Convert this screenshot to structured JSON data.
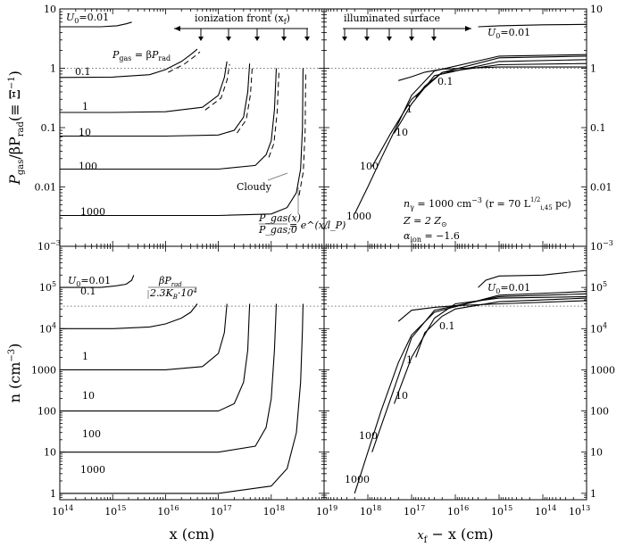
{
  "chart_data": [
    {
      "type": "line",
      "panel": "top-left",
      "xscale": "log",
      "yscale": "log",
      "xlim": [
        100000000000000.0,
        1e+19
      ],
      "ylim": [
        0.001,
        10
      ],
      "ylabel": "P_gas/βP_rad (≡ Ξ^−1)",
      "hline": 1,
      "series": [
        {
          "name": "U0=0.01",
          "x": [
            100000000000000.0,
            600000000000000.0,
            1200000000000000.0,
            1800000000000000.0,
            2300000000000000.0
          ],
          "y": [
            5.0,
            5.0,
            5.2,
            5.6,
            6.0
          ]
        },
        {
          "name": "0.1",
          "x": [
            100000000000000.0,
            1000000000000000.0,
            5000000000000000.0,
            1e+16,
            2e+16,
            3e+16,
            4e+16
          ],
          "y": [
            0.7,
            0.71,
            0.78,
            0.95,
            1.3,
            1.7,
            2.1
          ]
        },
        {
          "name": "1",
          "x": [
            100000000000000.0,
            1000000000000000.0,
            1e+16,
            5e+16,
            1e+17,
            1.3e+17,
            1.45e+17
          ],
          "y": [
            0.18,
            0.18,
            0.185,
            0.22,
            0.35,
            0.7,
            1.3
          ]
        },
        {
          "name": "10",
          "x": [
            100000000000000.0,
            1e+16,
            1e+17,
            2e+17,
            3e+17,
            3.6e+17,
            3.9e+17
          ],
          "y": [
            0.072,
            0.072,
            0.075,
            0.09,
            0.15,
            0.4,
            1.2
          ]
        },
        {
          "name": "100",
          "x": [
            100000000000000.0,
            1e+16,
            1e+17,
            5e+17,
            8e+17,
            1e+18,
            1.15e+18,
            1.25e+18
          ],
          "y": [
            0.02,
            0.02,
            0.02,
            0.023,
            0.035,
            0.06,
            0.2,
            1.0
          ]
        },
        {
          "name": "1000",
          "x": [
            100000000000000.0,
            1e+17,
            1e+18,
            2e+18,
            3e+18,
            3.6e+18,
            3.9e+18,
            4e+18
          ],
          "y": [
            0.0033,
            0.0033,
            0.0035,
            0.0045,
            0.008,
            0.02,
            0.1,
            1.0
          ]
        }
      ],
      "labels": {
        "u0": "U",
        "u0_sub": "0",
        "u0_val": "=0.01",
        "l01": "0.1",
        "l1": "1",
        "l10": "10",
        "l100": "100",
        "l1000": "1000",
        "pgas": "P",
        "pgas_sub": "gas",
        "pgas_eq": " = β",
        "prad": "P",
        "prad_sub": "rad",
        "ion_front": "ionization front (x",
        "ion_front_sub": "f",
        "ion_front_end": ")",
        "cloudy": "Cloudy",
        "exp_lhs_num": "P_gas(x)",
        "exp_lhs_den": "P_gas;0",
        "exp_rhs": "= e^(x/l_P)"
      }
    },
    {
      "type": "line",
      "panel": "top-right",
      "xscale": "log",
      "yscale": "log",
      "xlim": [
        1e+19,
        10000000000000.0
      ],
      "ylim": [
        0.001,
        10
      ],
      "hline": 1,
      "series": [
        {
          "name": "U0=0.01",
          "x": [
            3000000000000000.0,
            1000000000000000.0,
            100000000000000.0,
            10000000000000.0
          ],
          "y": [
            5.0,
            5.2,
            5.4,
            5.5
          ]
        },
        {
          "name": "0.1",
          "x": [
            2e+17,
            1e+17,
            5e+16,
            2e+16,
            1000000000000000.0,
            10000000000000.0
          ],
          "y": [
            0.62,
            0.72,
            0.86,
            0.97,
            1.05,
            1.05
          ]
        },
        {
          "name": "1",
          "x": [
            8e+16,
            5e+16,
            2e+16,
            1000000000000000.0,
            10000000000000.0
          ],
          "y": [
            0.32,
            0.5,
            0.85,
            1.15,
            1.2
          ]
        },
        {
          "name": "10",
          "x": [
            2.5e+17,
            1e+17,
            3e+16,
            1000000000000000.0,
            10000000000000.0
          ],
          "y": [
            0.08,
            0.25,
            0.75,
            1.3,
            1.4
          ]
        },
        {
          "name": "100",
          "x": [
            8e+17,
            3e+17,
            1e+17,
            2e+16,
            1000000000000000.0,
            10000000000000.0
          ],
          "y": [
            0.022,
            0.08,
            0.3,
            0.85,
            1.5,
            1.6
          ]
        },
        {
          "name": "1000",
          "x": [
            2e+18,
            1e+18,
            5e+17,
            2e+17,
            1e+17,
            3e+16,
            1000000000000000.0,
            10000000000000.0
          ],
          "y": [
            0.0035,
            0.01,
            0.03,
            0.12,
            0.35,
            0.9,
            1.6,
            1.7
          ]
        }
      ],
      "labels": {
        "illum": "illuminated surface",
        "u0": "U",
        "u0_sub": "0",
        "u0_val": "=0.01",
        "l01": "0.1",
        "l1": "1",
        "l10": "10",
        "l100": "100",
        "l1000": "1000",
        "ngamma": "n",
        "ngamma_sub": "γ",
        "ngamma_rest": " = 1000 cm",
        "ngamma_exp": "−3",
        "ngamma_paren": " (r = 70 L",
        "lsub": "i,45",
        "lsup": "1/2",
        "pc": " pc)",
        "z": "Z = 2 Z",
        "zsub": "⊙",
        "alpha": "α",
        "alpha_sub": "ion",
        "alpha_val": " = −1.6"
      }
    },
    {
      "type": "line",
      "panel": "bottom-left",
      "xscale": "log",
      "yscale": "log",
      "xlim": [
        100000000000000.0,
        1e+19
      ],
      "ylim": [
        0.7,
        1000000.0
      ],
      "xlabel": "x (cm)",
      "ylabel": "n (cm^−3)",
      "hline": 35000,
      "series": [
        {
          "name": "U0=0.01",
          "x": [
            100000000000000.0,
            600000000000000.0,
            1200000000000000.0,
            1800000000000000.0,
            2300000000000000.0,
            2500000000000000.0
          ],
          "y": [
            100000,
            100000,
            110000,
            120000,
            150000,
            200000
          ]
        },
        {
          "name": "0.1",
          "x": [
            100000000000000.0,
            1000000000000000.0,
            5000000000000000.0,
            1e+16,
            2e+16,
            3e+16,
            4e+16
          ],
          "y": [
            10000,
            10000,
            11000,
            13000,
            18000,
            25000,
            40000
          ]
        },
        {
          "name": "1",
          "x": [
            100000000000000.0,
            1e+16,
            5e+16,
            1e+17,
            1.3e+17,
            1.45e+17
          ],
          "y": [
            1000,
            1000,
            1200,
            2500,
            8000,
            40000
          ]
        },
        {
          "name": "10",
          "x": [
            100000000000000.0,
            1e+17,
            2e+17,
            3e+17,
            3.6e+17,
            3.9e+17
          ],
          "y": [
            100,
            100,
            150,
            500,
            3000,
            40000
          ]
        },
        {
          "name": "100",
          "x": [
            100000000000000.0,
            1e+17,
            5e+17,
            8e+17,
            1e+18,
            1.15e+18,
            1.25e+18
          ],
          "y": [
            10,
            10,
            14,
            40,
            200,
            3000,
            40000
          ]
        },
        {
          "name": "1000",
          "x": [
            100000000000000.0,
            1e+17,
            1e+18,
            2e+18,
            3e+18,
            3.6e+18,
            3.9e+18,
            4e+18
          ],
          "y": [
            1,
            1,
            1.5,
            4,
            30,
            500,
            10000,
            40000
          ]
        }
      ],
      "labels": {
        "u0": "U",
        "u0_sub": "0",
        "u0_val": "=0.01",
        "l01": "0.1",
        "l1": "1",
        "l10": "10",
        "l100": "100",
        "l1000": "1000",
        "frac_num": "βP",
        "frac_num_sub": "rad",
        "frac_den": "2.3K",
        "frac_den_sub": "B",
        "frac_den_end": "·10",
        "frac_den_sup": "4"
      }
    },
    {
      "type": "line",
      "panel": "bottom-right",
      "xscale": "log",
      "yscale": "log",
      "xlim": [
        1e+19,
        10000000000000.0
      ],
      "ylim": [
        0.7,
        1000000.0
      ],
      "xlabel": "x_f − x (cm)",
      "hline": 35000,
      "series": [
        {
          "name": "U0=0.01",
          "x": [
            3000000000000000.0,
            2000000000000000.0,
            1000000000000000.0,
            100000000000000.0,
            10000000000000.0
          ],
          "y": [
            100000,
            150000,
            190000,
            200000,
            260000
          ]
        },
        {
          "name": "0.1",
          "x": [
            2e+17,
            1e+17,
            3e+16,
            1e+16,
            1000000000000000.0,
            10000000000000.0
          ],
          "y": [
            15000,
            28000,
            33000,
            36000,
            40000,
            48000
          ]
        },
        {
          "name": "1",
          "x": [
            8e+16,
            5e+16,
            2e+16,
            1e+16,
            1000000000000000.0,
            10000000000000.0
          ],
          "y": [
            2000,
            8000,
            20000,
            30000,
            45000,
            55000
          ]
        },
        {
          "name": "10",
          "x": [
            2.5e+17,
            1e+17,
            3e+16,
            1e+16,
            1000000000000000.0,
            10000000000000.0
          ],
          "y": [
            150,
            2000,
            18000,
            40000,
            55000,
            60000
          ]
        },
        {
          "name": "100",
          "x": [
            8e+17,
            3e+17,
            1e+17,
            3e+16,
            1000000000000000.0,
            10000000000000.0
          ],
          "y": [
            10,
            200,
            6000,
            28000,
            60000,
            70000
          ]
        },
        {
          "name": "1000",
          "x": [
            2e+18,
            1e+18,
            5e+17,
            2e+17,
            1e+17,
            3e+16,
            1000000000000000.0,
            10000000000000.0
          ],
          "y": [
            1,
            10,
            100,
            1500,
            7000,
            25000,
            65000,
            80000
          ]
        }
      ],
      "labels": {
        "u0": "U",
        "u0_sub": "0",
        "u0_val": "=0.01",
        "l01": "0.1",
        "l1": "1",
        "l10": "10",
        "l100": "100",
        "l1000": "1000"
      }
    }
  ],
  "tick_labels": {
    "top_y": [
      "10",
      "1",
      "0.1",
      "0.01"
    ],
    "top_y_min": "10",
    "top_y_min_exp": "−3",
    "bot_y": [
      "10",
      "10",
      "10",
      "1000",
      "100",
      "10",
      "1"
    ],
    "bot_y_exp": [
      "5",
      "4",
      "",
      "",
      "",
      "",
      ""
    ],
    "left_x": [
      "10",
      "10",
      "10",
      "10",
      "10",
      "10"
    ],
    "left_x_exp": [
      "14",
      "15",
      "16",
      "17",
      "18",
      "19"
    ],
    "right_x": [
      "10",
      "10",
      "10",
      "10",
      "10"
    ],
    "right_x_exp": [
      "18",
      "17",
      "16",
      "15",
      "14"
    ],
    "right_x_end": "10",
    "right_x_end_exp": "13"
  },
  "axis_titles": {
    "top_y_p": "P",
    "top_y_gas": "gas",
    "top_y_mid": "/βP",
    "top_y_rad": "rad",
    "top_y_end": "(≡ Ξ",
    "top_y_exp": "−1",
    "top_y_close": ")",
    "bot_y": "n (cm",
    "bot_y_exp": "−3",
    "bot_y_close": ")",
    "bot_x_left": "x (cm)",
    "bot_x_right_a": "x",
    "bot_x_right_sub": "f",
    "bot_x_right_b": " − x (cm)"
  }
}
